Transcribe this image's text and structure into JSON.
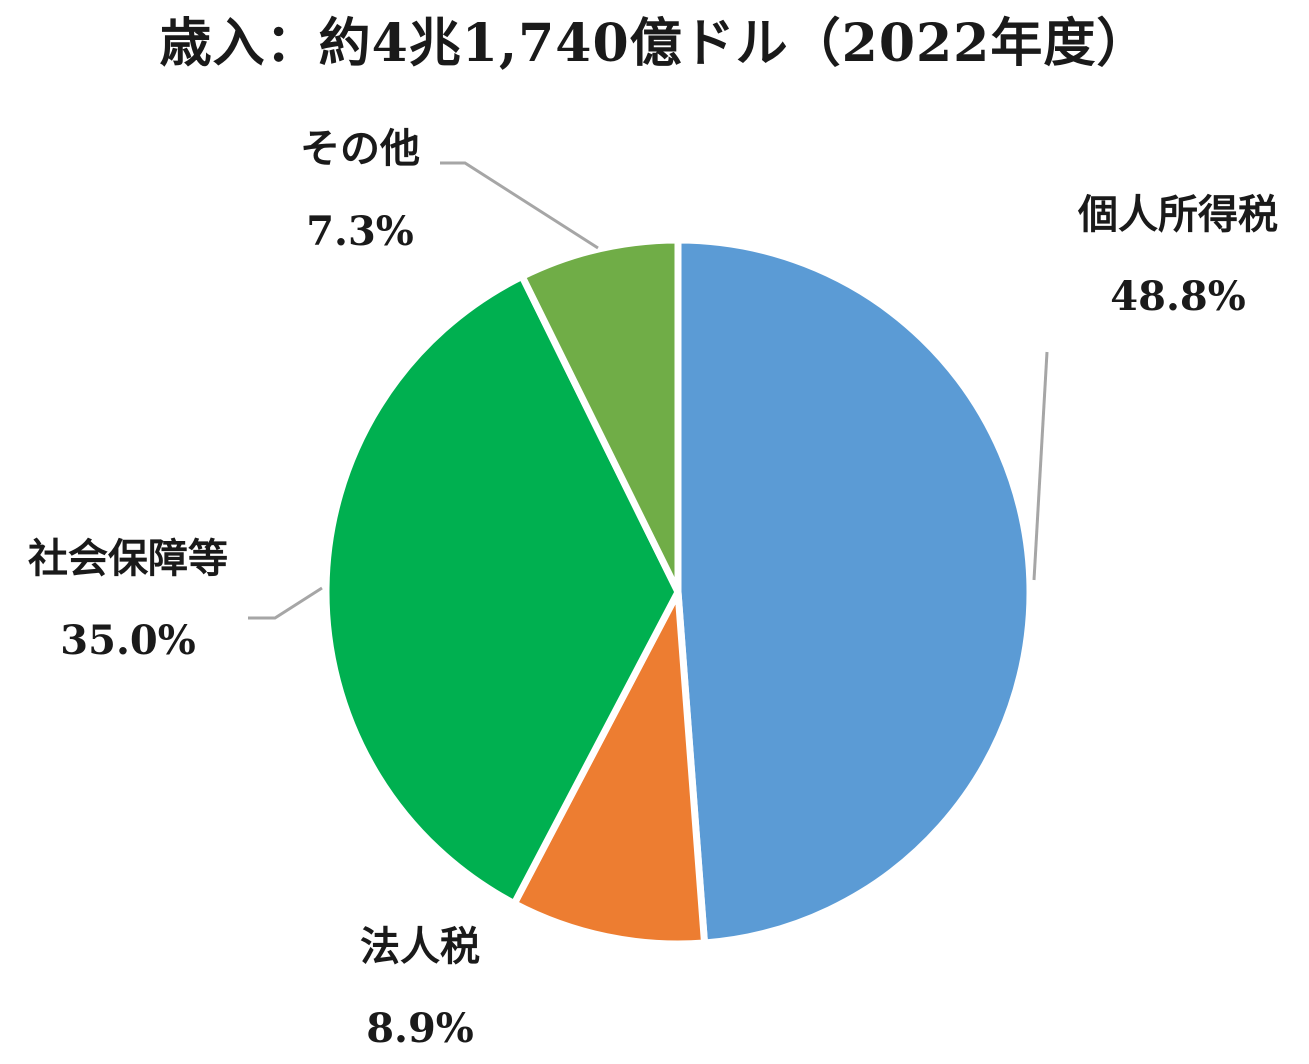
{
  "chart_data": {
    "type": "pie",
    "title": "歳入：約4兆1,740億ドル（2022年度）",
    "slices": [
      {
        "label": "個人所得税",
        "value": 48.8,
        "value_label": "48.8%",
        "color": "#5b9bd5"
      },
      {
        "label": "法人税",
        "value": 8.9,
        "value_label": "8.9%",
        "color": "#ed7d31"
      },
      {
        "label": "社会保障等",
        "value": 35.0,
        "value_label": "35.0%",
        "color": "#00b050"
      },
      {
        "label": "その他",
        "value": 7.3,
        "value_label": "7.3%",
        "color": "#70ad47"
      }
    ],
    "start": "12 o'clock",
    "direction": "clockwise",
    "legend": "none",
    "data_labels": "outside with leader lines",
    "leader_line_color": "#a6a6a6"
  }
}
